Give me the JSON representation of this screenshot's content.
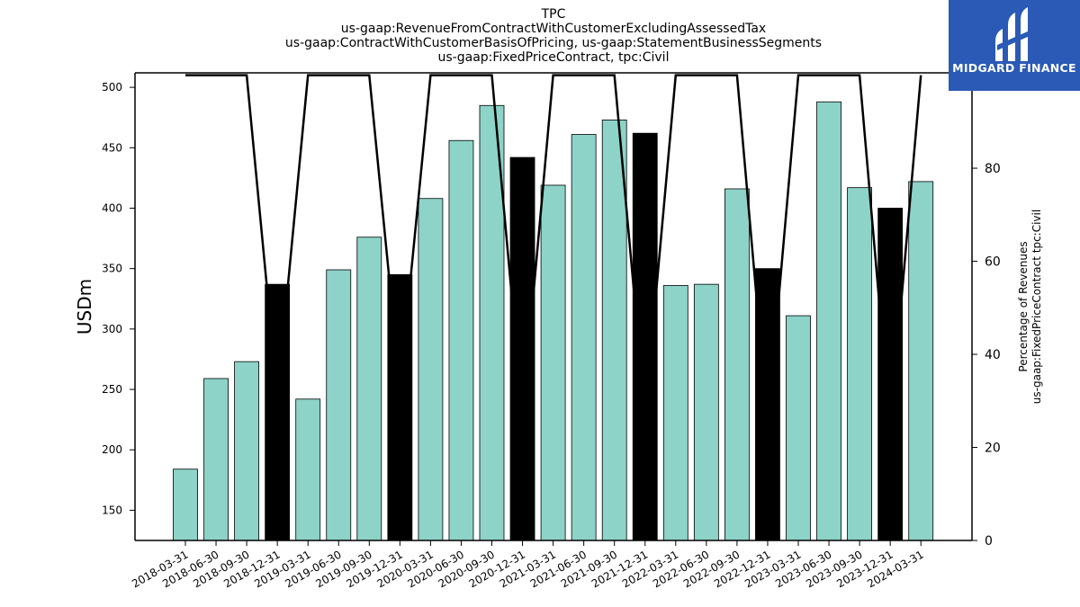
{
  "chart_data": {
    "type": "bar",
    "title_lines": [
      "TPC",
      "us-gaap:RevenueFromContractWithCustomerExcludingAssessedTax",
      "us-gaap:ContractWithCustomerBasisOfPricing, us-gaap:StatementBusinessSegments",
      "us-gaap:FixedPriceContract, tpc:Civil"
    ],
    "ylabel": "USDm",
    "y2label_lines": [
      "Percentage of Revenues",
      "us-gaap:FixedPriceContract tpc:Civil"
    ],
    "categories": [
      "2018-03-31",
      "2018-06-30",
      "2018-09-30",
      "2018-12-31",
      "2019-03-31",
      "2019-06-30",
      "2019-09-30",
      "2019-12-31",
      "2020-03-31",
      "2020-06-30",
      "2020-09-30",
      "2020-12-31",
      "2021-03-31",
      "2021-06-30",
      "2021-09-30",
      "2021-12-31",
      "2022-03-31",
      "2022-06-30",
      "2022-09-30",
      "2022-12-31",
      "2023-03-31",
      "2023-06-30",
      "2023-09-30",
      "2023-12-31",
      "2024-03-31"
    ],
    "values": [
      184,
      259,
      273,
      337,
      242,
      349,
      376,
      345,
      408,
      456,
      485,
      442,
      419,
      461,
      473,
      462,
      336,
      337,
      416,
      350,
      311,
      488,
      417,
      400,
      422
    ],
    "highlight": [
      false,
      false,
      false,
      true,
      false,
      false,
      false,
      true,
      false,
      false,
      false,
      true,
      false,
      false,
      false,
      true,
      false,
      false,
      false,
      true,
      false,
      false,
      false,
      true,
      false
    ],
    "line_values": [
      100,
      100,
      100,
      31,
      100,
      100,
      100,
      33,
      100,
      100,
      100,
      27,
      100,
      100,
      100,
      27,
      100,
      100,
      100,
      25,
      100,
      100,
      100,
      24,
      100
    ],
    "ylim": [
      125,
      512
    ],
    "yticks": [
      150,
      200,
      250,
      300,
      350,
      400,
      450,
      500
    ],
    "y2lim": [
      0,
      100.5
    ],
    "y2ticks": [
      0,
      20,
      40,
      60,
      80,
      100
    ],
    "colors": {
      "bar": "#8dd3c7",
      "highlight": "#000000",
      "line": "#000000"
    },
    "grid": false
  },
  "logo": {
    "text": "MIDGARD FINANCE",
    "background": "#2a5ab5"
  }
}
